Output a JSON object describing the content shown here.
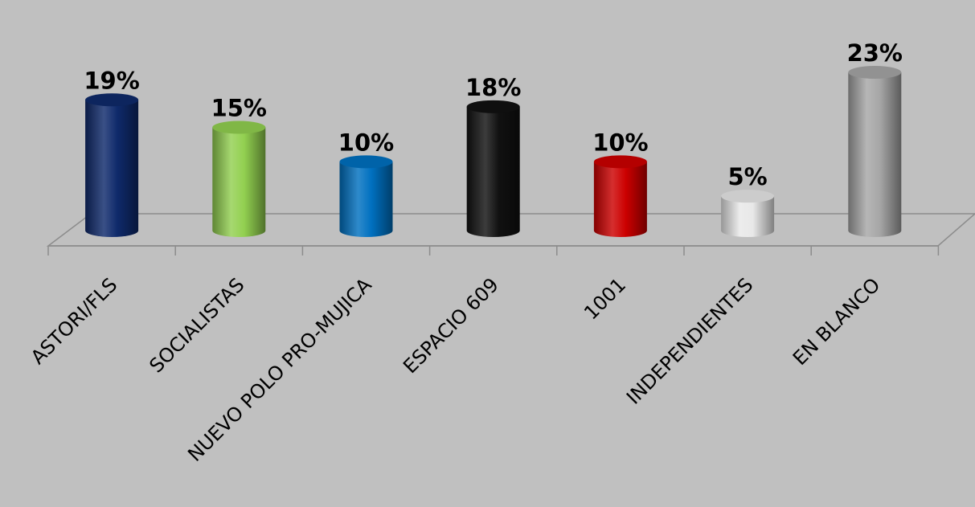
{
  "chart_data": {
    "type": "bar",
    "title": "",
    "xlabel": "",
    "ylabel": "",
    "ylim": [
      0,
      25
    ],
    "grid": false,
    "legend": "none",
    "categories": [
      "ASTORI/FLS",
      "SOCIALISTAS",
      "NUEVO POLO PRO-MUJICA",
      "ESPACIO 609",
      "1001",
      "INDEPENDIENTES",
      "EN BLANCO"
    ],
    "values": [
      19,
      15,
      10,
      18,
      10,
      5,
      23
    ],
    "value_labels": [
      "19%",
      "15%",
      "10%",
      "18%",
      "10%",
      "5%",
      "23%"
    ],
    "colors": [
      "#0f2a6b",
      "#92d050",
      "#0070c0",
      "#111111",
      "#cc0000",
      "#e8e8e8",
      "#a6a6a6"
    ]
  }
}
